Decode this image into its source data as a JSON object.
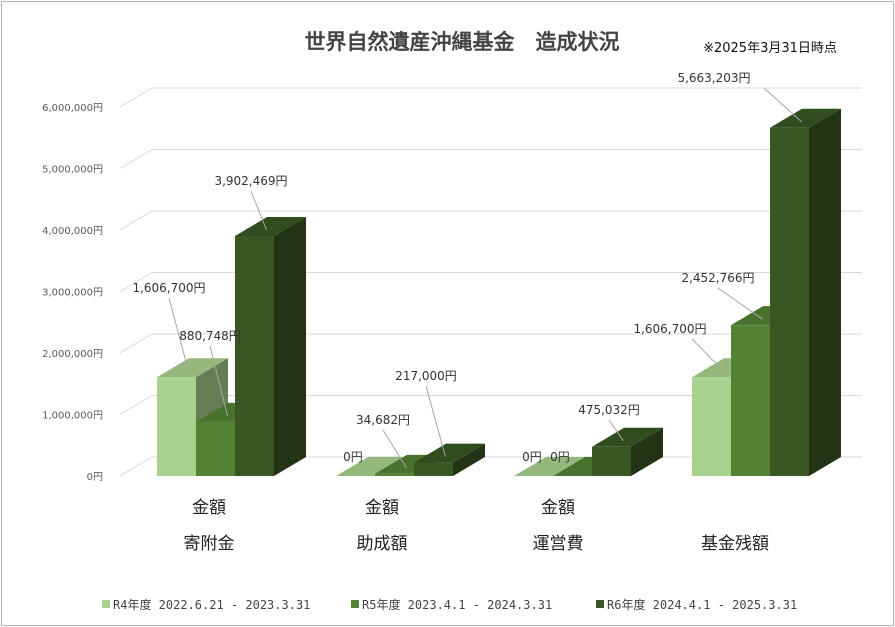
{
  "chart_data": {
    "type": "bar",
    "title": "世界自然遺産沖縄基金　造成状況",
    "note": "※2025年3月31日時点",
    "categories": [
      {
        "top": "金額",
        "bottom": "寄附金"
      },
      {
        "top": "金額",
        "bottom": "助成額"
      },
      {
        "top": "金額",
        "bottom": "運営費"
      },
      {
        "top": "",
        "bottom": "基金残額"
      }
    ],
    "series": [
      {
        "name": "R4年度 2022.6.21 - 2023.3.31",
        "color": "#a9d18e",
        "values": [
          1606700,
          0,
          0,
          1606700
        ]
      },
      {
        "name": "R5年度 2023.4.1 - 2024.3.31",
        "color": "#548235",
        "values": [
          880748,
          34682,
          0,
          2452766
        ]
      },
      {
        "name": "R6年度 2024.4.1 - 2025.3.31",
        "color": "#385723",
        "values": [
          3902469,
          217000,
          475032,
          5663203
        ]
      }
    ],
    "data_labels": [
      [
        "1,606,700円",
        null,
        null,
        "1,606,700円"
      ],
      [
        "880,748円",
        "34,682円",
        "0円",
        "2,452,766円"
      ],
      [
        "3,902,469円",
        "217,000円",
        "475,032円",
        "5,663,203円"
      ]
    ],
    "extra_labels": [
      "0円",
      "0円"
    ],
    "yticks": [
      "0円",
      "1,000,000円",
      "2,000,000円",
      "3,000,000円",
      "4,000,000円",
      "5,000,000円",
      "6,000,000円"
    ],
    "ylim": [
      0,
      6000000
    ],
    "legend_position": "bottom",
    "grid": true
  }
}
